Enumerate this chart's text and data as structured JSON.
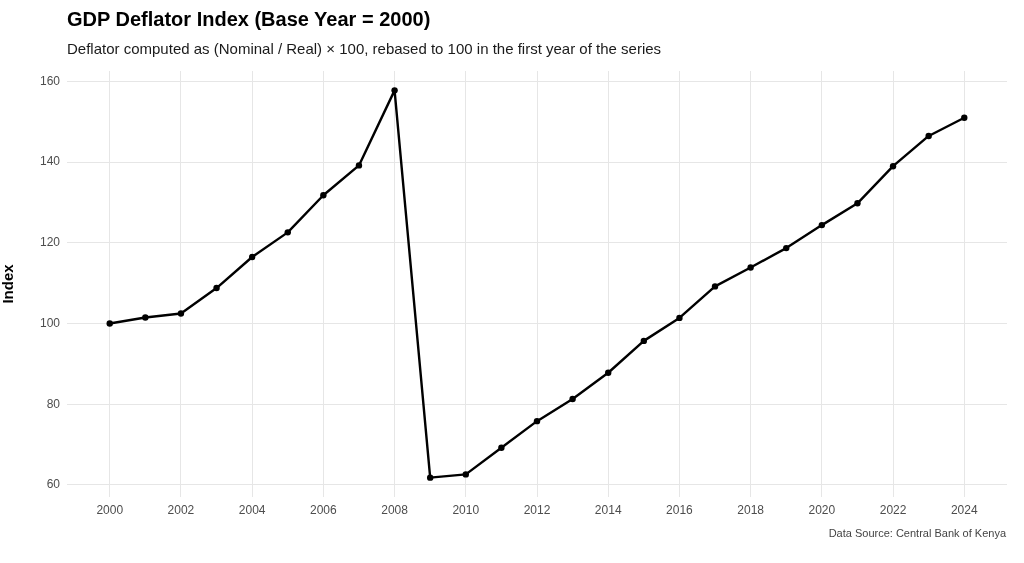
{
  "chart_data": {
    "type": "line",
    "title": "GDP Deflator Index (Base Year = 2000)",
    "subtitle": "Deflator computed as (Nominal / Real) × 100, rebased to 100 in the first year of the series",
    "ylabel": "Index",
    "annotations": [
      "Data Source: Central Bank of Kenya"
    ],
    "x": [
      2000,
      2001,
      2002,
      2003,
      2004,
      2005,
      2006,
      2007,
      2008,
      2009,
      2010,
      2011,
      2012,
      2013,
      2014,
      2015,
      2016,
      2017,
      2018,
      2019,
      2020,
      2021,
      2022,
      2023,
      2024
    ],
    "series": [
      {
        "color": "#000000",
        "values": [
          100,
          101.5,
          102.5,
          108.8,
          116.5,
          122.6,
          131.8,
          139.2,
          157.8,
          61.8,
          62.6,
          69.2,
          75.8,
          81.3,
          87.8,
          95.7,
          101.4,
          109.2,
          113.9,
          118.7,
          124.4,
          129.8,
          139,
          146.5,
          151
        ]
      }
    ],
    "xlim": [
      1998.8,
      2025.2
    ],
    "xticks": [
      2000,
      2002,
      2004,
      2006,
      2008,
      2010,
      2012,
      2014,
      2016,
      2018,
      2020,
      2022,
      2024
    ],
    "ylim": [
      57,
      162.6
    ],
    "yticks": [
      60,
      80,
      100,
      120,
      140,
      160
    ],
    "grid": true,
    "legend": false,
    "marker": "circle",
    "line_style": "solid"
  }
}
